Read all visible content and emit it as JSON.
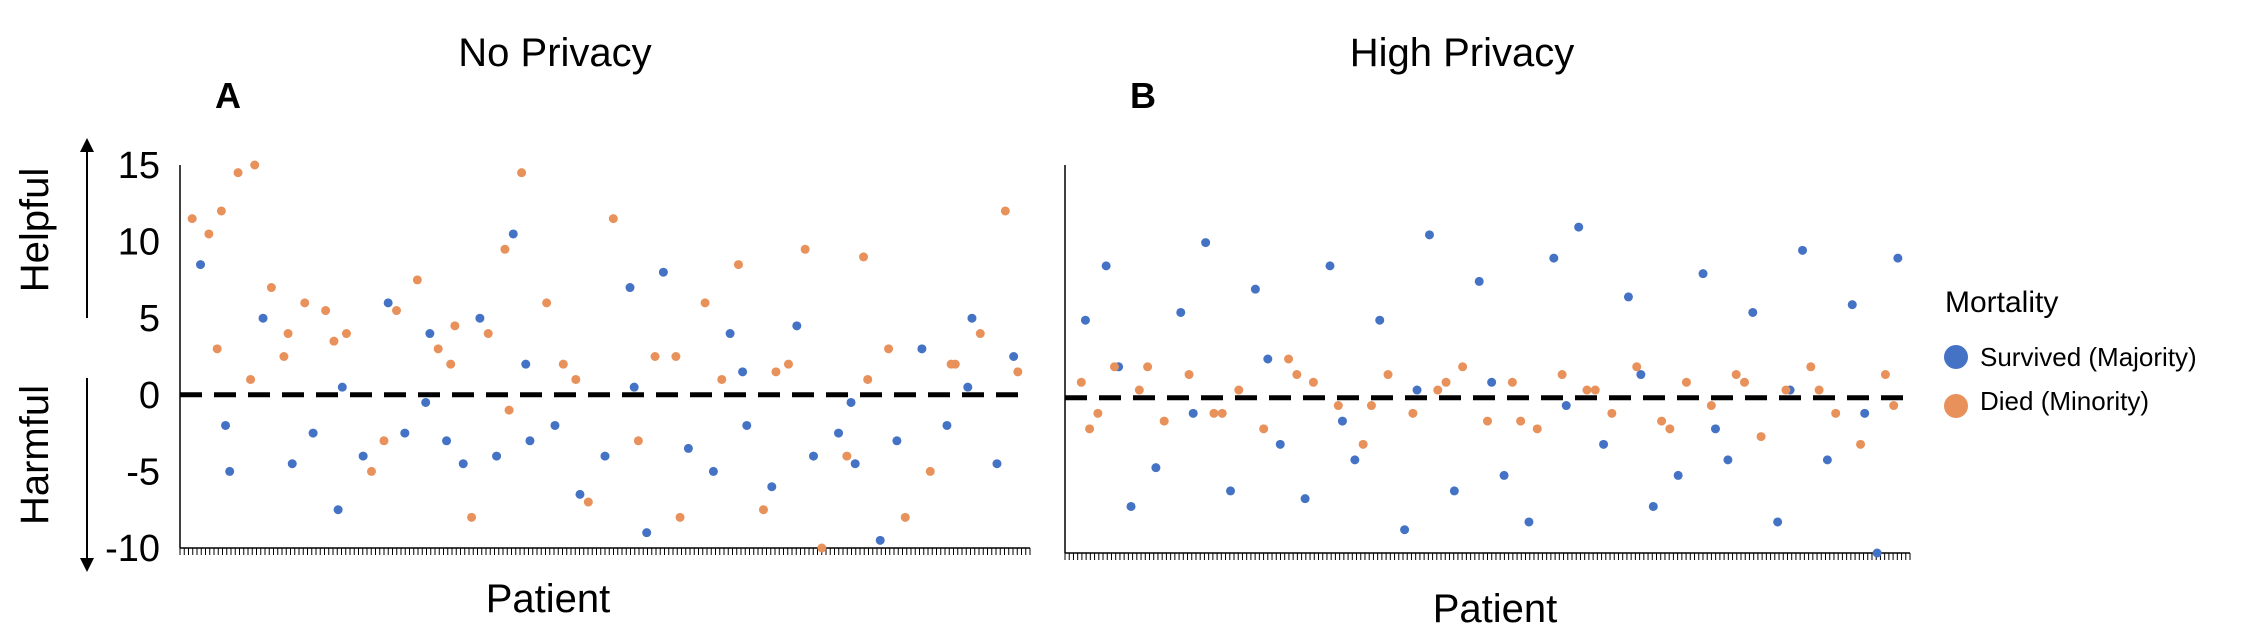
{
  "chart_data": [
    {
      "panel": "A",
      "type": "scatter",
      "title": "No Privacy",
      "xlabel": "Patient",
      "ylim": [
        -10,
        15
      ],
      "yticks": [
        15,
        10,
        5,
        0,
        -5,
        -10
      ],
      "n_patients": 200,
      "series": [
        {
          "name": "Survived (Majority)",
          "x": [
            3,
            10,
            18,
            25,
            30,
            36,
            42,
            48,
            52,
            58,
            62,
            66,
            70,
            74,
            78,
            82,
            88,
            94,
            100,
            106,
            110,
            114,
            120,
            126,
            130,
            134,
            140,
            146,
            150,
            156,
            160,
            166,
            170,
            176,
            182,
            188,
            194,
            198,
            9,
            37,
            57,
            81,
            107,
            133,
            159,
            187
          ],
          "y": [
            8.5,
            -5,
            5,
            -4.5,
            -2.5,
            -7.5,
            -4,
            6,
            -2.5,
            4,
            -3,
            -4.5,
            5,
            -4,
            10.5,
            -3,
            -2,
            -6.5,
            -4,
            7,
            -9,
            8,
            -3.5,
            -5,
            4,
            -2,
            -6,
            4.5,
            -4,
            -2.5,
            -4.5,
            -9.5,
            -3,
            3,
            -2,
            5,
            -4.5,
            2.5,
            -2,
            0.5,
            -0.5,
            2,
            0.5,
            1.5,
            -0.5,
            0.5
          ]
        },
        {
          "name": "Died (Minority)",
          "x": [
            1,
            5,
            8,
            12,
            16,
            20,
            24,
            28,
            33,
            38,
            44,
            50,
            55,
            60,
            64,
            68,
            72,
            76,
            80,
            86,
            90,
            96,
            102,
            108,
            112,
            118,
            124,
            128,
            132,
            138,
            144,
            148,
            152,
            158,
            162,
            168,
            172,
            178,
            184,
            190,
            196,
            199,
            7,
            15,
            23,
            35,
            47,
            63,
            77,
            93,
            117,
            141,
            163,
            183
          ],
          "y": [
            11.5,
            10.5,
            12,
            14.5,
            15,
            7,
            4,
            6,
            5.5,
            4,
            -5,
            5.5,
            7.5,
            3,
            4.5,
            -8,
            4,
            9.5,
            14.5,
            6,
            2,
            -7,
            11.5,
            -3,
            2.5,
            -8,
            6,
            1,
            8.5,
            -7.5,
            2,
            9.5,
            -10,
            -4,
            9,
            3,
            -8,
            -5,
            2,
            4,
            12,
            1.5,
            3,
            1,
            2.5,
            3.5,
            -3,
            2,
            -1,
            1,
            2.5,
            1.5,
            1,
            2
          ]
        }
      ]
    },
    {
      "panel": "B",
      "type": "scatter",
      "title": "High Privacy",
      "xlabel": "Patient",
      "ylim": [
        -10,
        15
      ],
      "yticks": [
        15,
        10,
        5,
        0,
        -5,
        -10
      ],
      "n_patients": 200,
      "series": [
        {
          "name": "Survived (Majority)",
          "x": [
            3,
            8,
            14,
            20,
            26,
            32,
            38,
            44,
            50,
            56,
            62,
            68,
            74,
            80,
            86,
            92,
            98,
            104,
            110,
            116,
            122,
            128,
            134,
            140,
            146,
            152,
            158,
            164,
            170,
            176,
            182,
            188,
            194,
            199,
            11,
            29,
            47,
            65,
            83,
            101,
            119,
            137,
            155,
            173,
            191
          ],
          "y": [
            5,
            8.5,
            -7,
            -4.5,
            5.5,
            10,
            -6,
            7,
            -3,
            -6.5,
            8.5,
            -4,
            5,
            -8.5,
            10.5,
            -6,
            7.5,
            -5,
            -8,
            9,
            11,
            -3,
            6.5,
            -7,
            -5,
            8,
            -4,
            5.5,
            -8,
            9.5,
            -4,
            6,
            -10,
            9,
            2,
            -1,
            2.5,
            -1.5,
            0.5,
            1,
            -0.5,
            1.5,
            -2,
            0.5,
            -1
          ]
        },
        {
          "name": "Died (Minority)",
          "x": [
            2,
            6,
            10,
            16,
            22,
            28,
            34,
            40,
            46,
            52,
            58,
            64,
            70,
            76,
            82,
            88,
            94,
            100,
            106,
            112,
            118,
            124,
            130,
            136,
            142,
            148,
            154,
            160,
            166,
            172,
            178,
            184,
            190,
            196,
            4,
            18,
            36,
            54,
            72,
            90,
            108,
            126,
            144,
            162,
            180,
            198
          ],
          "y": [
            1,
            -1,
            2,
            0.5,
            -1.5,
            1.5,
            -1,
            0.5,
            -2,
            2.5,
            1,
            -0.5,
            -3,
            1.5,
            -1,
            0.5,
            2,
            -1.5,
            1,
            -2,
            1.5,
            0.5,
            -1,
            2,
            -1.5,
            1,
            -0.5,
            1.5,
            -2.5,
            0.5,
            2,
            -1,
            -3,
            1.5,
            -2,
            2,
            -1,
            1.5,
            -0.5,
            1,
            -1.5,
            0.5,
            -2,
            1,
            0.5,
            -0.5
          ]
        }
      ]
    }
  ],
  "side_labels": {
    "helpful": "Helpful",
    "harmful": "Harmful"
  },
  "legend": {
    "title": "Mortality",
    "items": [
      {
        "label": "Survived (Majority)",
        "color": "#4472c4"
      },
      {
        "label": "Died (Minority)",
        "color": "#e8915a"
      }
    ]
  },
  "colors": {
    "survived": "#4472c4",
    "died": "#e8915a"
  }
}
